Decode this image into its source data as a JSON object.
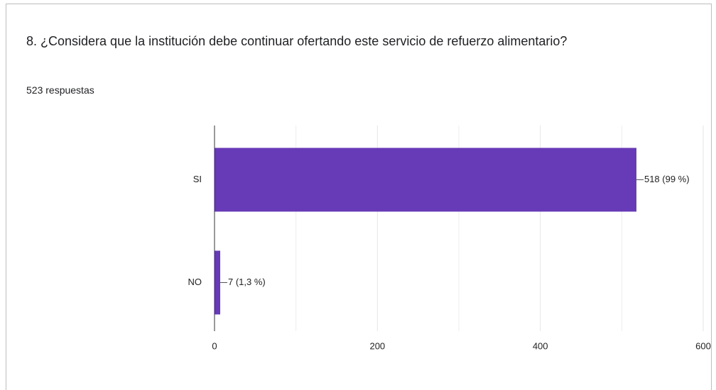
{
  "chart_data": {
    "type": "hbar",
    "title": "8. ¿Considera que la institución debe continuar ofertando este servicio de refuerzo alimentario?",
    "subtitle": "523 respuestas",
    "categories": [
      "SI",
      "NO"
    ],
    "values": [
      518,
      7
    ],
    "value_labels": [
      "518 (99 %)",
      "7 (1,3 %)"
    ],
    "color": "#673ab7",
    "xlim": [
      0,
      600
    ],
    "xticks": [
      0,
      200,
      400,
      600
    ],
    "minor_xticks": [
      100,
      300,
      500
    ],
    "grid": true
  }
}
